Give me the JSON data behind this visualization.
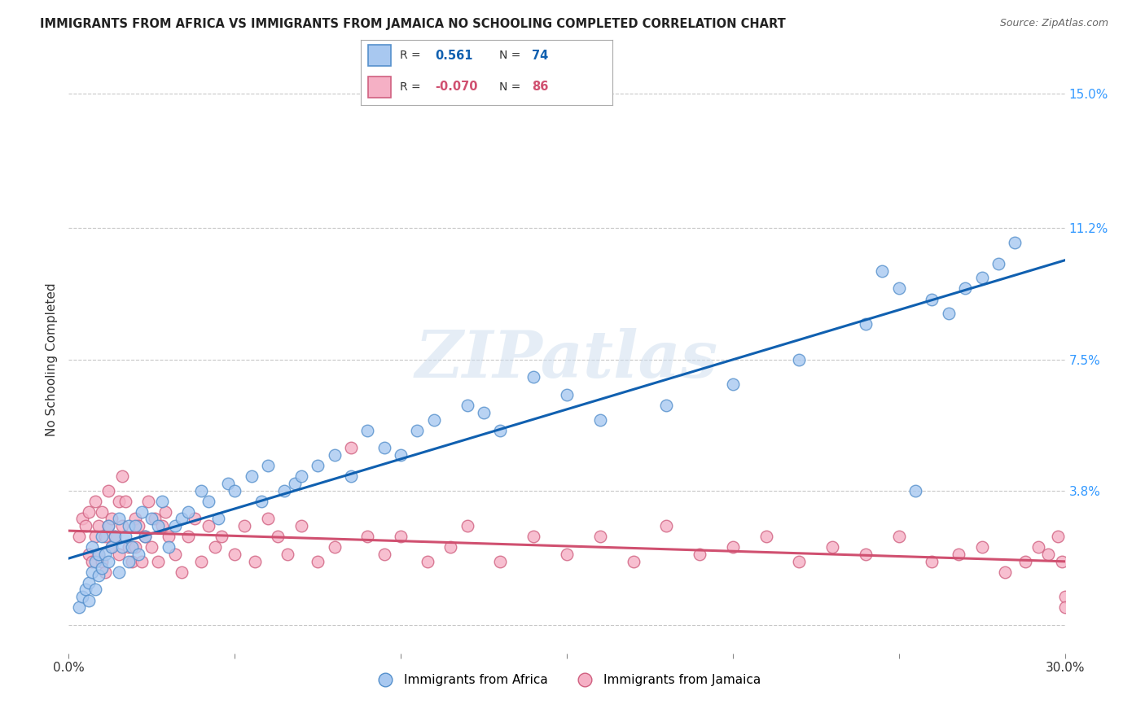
{
  "title": "IMMIGRANTS FROM AFRICA VS IMMIGRANTS FROM JAMAICA NO SCHOOLING COMPLETED CORRELATION CHART",
  "source": "Source: ZipAtlas.com",
  "ylabel": "No Schooling Completed",
  "xlim": [
    0.0,
    0.3
  ],
  "ylim": [
    -0.008,
    0.158
  ],
  "xtick_positions": [
    0.0,
    0.05,
    0.1,
    0.15,
    0.2,
    0.25,
    0.3
  ],
  "xticklabels": [
    "0.0%",
    "",
    "",
    "",
    "",
    "",
    "30.0%"
  ],
  "ytick_positions": [
    0.0,
    0.038,
    0.075,
    0.112,
    0.15
  ],
  "ytick_labels": [
    "",
    "3.8%",
    "7.5%",
    "11.2%",
    "15.0%"
  ],
  "africa_color": "#a8c8f0",
  "africa_edge": "#5590cc",
  "jamaica_color": "#f5b0c5",
  "jamaica_edge": "#d06080",
  "trendline_africa_color": "#1060b0",
  "trendline_jamaica_color": "#d05070",
  "R_africa": 0.561,
  "N_africa": 74,
  "R_jamaica": -0.07,
  "N_jamaica": 86,
  "watermark": "ZIPatlas",
  "background_color": "#ffffff",
  "grid_color": "#c8c8c8",
  "title_color": "#222222",
  "source_color": "#666666",
  "right_axis_color": "#3399ff",
  "legend_box_edge": "#aaaaaa",
  "africa_seed_x": [
    0.003,
    0.004,
    0.005,
    0.006,
    0.006,
    0.007,
    0.007,
    0.008,
    0.008,
    0.009,
    0.009,
    0.01,
    0.01,
    0.011,
    0.012,
    0.012,
    0.013,
    0.014,
    0.015,
    0.015,
    0.016,
    0.017,
    0.018,
    0.018,
    0.019,
    0.02,
    0.021,
    0.022,
    0.023,
    0.025,
    0.027,
    0.028,
    0.03,
    0.032,
    0.034,
    0.036,
    0.04,
    0.042,
    0.045,
    0.048,
    0.05,
    0.055,
    0.058,
    0.06,
    0.065,
    0.068,
    0.07,
    0.075,
    0.08,
    0.085,
    0.09,
    0.095,
    0.1,
    0.105,
    0.11,
    0.12,
    0.125,
    0.13,
    0.14,
    0.15,
    0.16,
    0.18,
    0.2,
    0.22,
    0.24,
    0.245,
    0.25,
    0.255,
    0.26,
    0.265,
    0.27,
    0.275,
    0.28,
    0.285
  ],
  "africa_seed_y": [
    0.005,
    0.008,
    0.01,
    0.007,
    0.012,
    0.015,
    0.022,
    0.01,
    0.018,
    0.014,
    0.02,
    0.016,
    0.025,
    0.02,
    0.018,
    0.028,
    0.022,
    0.025,
    0.015,
    0.03,
    0.022,
    0.025,
    0.028,
    0.018,
    0.022,
    0.028,
    0.02,
    0.032,
    0.025,
    0.03,
    0.028,
    0.035,
    0.022,
    0.028,
    0.03,
    0.032,
    0.038,
    0.035,
    0.03,
    0.04,
    0.038,
    0.042,
    0.035,
    0.045,
    0.038,
    0.04,
    0.042,
    0.045,
    0.048,
    0.042,
    0.055,
    0.05,
    0.048,
    0.055,
    0.058,
    0.062,
    0.06,
    0.055,
    0.07,
    0.065,
    0.058,
    0.062,
    0.068,
    0.075,
    0.085,
    0.1,
    0.095,
    0.038,
    0.092,
    0.088,
    0.095,
    0.098,
    0.102,
    0.108
  ],
  "jamaica_seed_x": [
    0.003,
    0.004,
    0.005,
    0.006,
    0.006,
    0.007,
    0.008,
    0.008,
    0.009,
    0.009,
    0.01,
    0.01,
    0.011,
    0.011,
    0.012,
    0.012,
    0.013,
    0.013,
    0.014,
    0.015,
    0.015,
    0.016,
    0.016,
    0.017,
    0.018,
    0.019,
    0.02,
    0.02,
    0.021,
    0.022,
    0.023,
    0.024,
    0.025,
    0.026,
    0.027,
    0.028,
    0.029,
    0.03,
    0.032,
    0.034,
    0.036,
    0.038,
    0.04,
    0.042,
    0.044,
    0.046,
    0.05,
    0.053,
    0.056,
    0.06,
    0.063,
    0.066,
    0.07,
    0.075,
    0.08,
    0.085,
    0.09,
    0.095,
    0.1,
    0.108,
    0.115,
    0.12,
    0.13,
    0.14,
    0.15,
    0.16,
    0.17,
    0.18,
    0.19,
    0.2,
    0.21,
    0.22,
    0.23,
    0.24,
    0.25,
    0.26,
    0.268,
    0.275,
    0.282,
    0.288,
    0.292,
    0.295,
    0.298,
    0.299,
    0.3,
    0.3
  ],
  "jamaica_seed_y": [
    0.025,
    0.03,
    0.028,
    0.02,
    0.032,
    0.018,
    0.025,
    0.035,
    0.02,
    0.028,
    0.018,
    0.032,
    0.025,
    0.015,
    0.028,
    0.038,
    0.022,
    0.03,
    0.025,
    0.035,
    0.02,
    0.042,
    0.028,
    0.035,
    0.022,
    0.018,
    0.03,
    0.022,
    0.028,
    0.018,
    0.025,
    0.035,
    0.022,
    0.03,
    0.018,
    0.028,
    0.032,
    0.025,
    0.02,
    0.015,
    0.025,
    0.03,
    0.018,
    0.028,
    0.022,
    0.025,
    0.02,
    0.028,
    0.018,
    0.03,
    0.025,
    0.02,
    0.028,
    0.018,
    0.022,
    0.05,
    0.025,
    0.02,
    0.025,
    0.018,
    0.022,
    0.028,
    0.018,
    0.025,
    0.02,
    0.025,
    0.018,
    0.028,
    0.02,
    0.022,
    0.025,
    0.018,
    0.022,
    0.02,
    0.025,
    0.018,
    0.02,
    0.022,
    0.015,
    0.018,
    0.022,
    0.02,
    0.025,
    0.018,
    0.008,
    0.005
  ]
}
